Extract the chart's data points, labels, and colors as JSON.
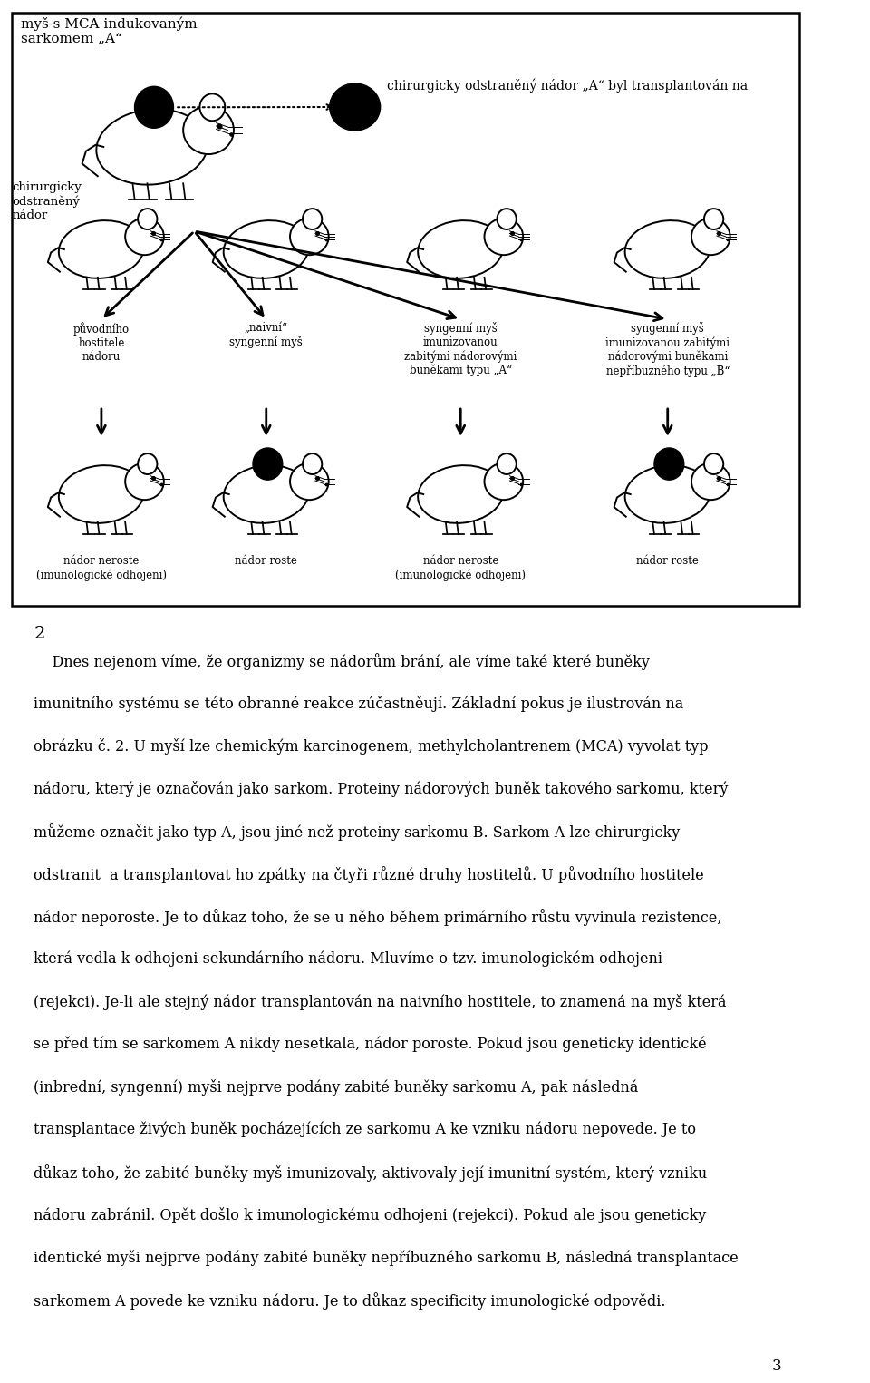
{
  "bg_color": "#ffffff",
  "title_label": "myš s MCA indukovaným\nsarkomem „A“",
  "transplant_label": "chirurgicky odstraněný nádor „A“ byl transplantován na",
  "surgical_label": "chirurgicky\nodstraněný\nnádor",
  "upper_mouse_labels": [
    "původního\nhostitele\nnádoru",
    "„naivní“\nsyngenní myš",
    "syngenní myš\nimunizovanou\nzabitými nádorovými\nbuněkami typu „A“",
    "syngenní myš\nimunizovanou zabitými\nnádorovými buněkami\nnepříbuzného typu „B“"
  ],
  "result_labels": [
    "nádor neroste\n(imunologické odhojeni)",
    "nádor roste",
    "nádor neroste\n(imunologické odhojeni)",
    "nádor roste"
  ],
  "lower_has_tumor": [
    false,
    true,
    false,
    true
  ],
  "lower_tumor_dashed": [
    true,
    false,
    false,
    false
  ],
  "section_num": "2",
  "text_lines": [
    "    Dnes nejenom víme, že organizmy se nádorům brání, ale víme také které buněky",
    "imunitního systému se této obranné reakce zúčastněují. Základní pokus je ilustrován na",
    "obrázku č. 2. U myší lze chemickým karcinogenem, methylcholantrenem (MCA) vyvolat typ",
    "nádoru, který je označován jako sarkom. Proteiny nádorových buněk takového sarkomu, který",
    "můžeme označit jako typ A, jsou jiné než proteiny sarkomu B. Sarkom A lze chirurgicky",
    "odstranit  a transplantovat ho zpátky na čtyři různé druhy hostitelů. U původního hostitele",
    "nádor neporoste. Je to důkaz toho, že se u něho během primárního růstu vyvinula rezistence,",
    "která vedla k odhojeni sekundárního nádoru. Mluvíme o tzv. imunologickém odhojeni",
    "(rejekci). Je-li ale stejný nádor transplantován na naivního hostitele, to znamená na myš která",
    "se před tím se sarkomem A nikdy nesetkala, nádor poroste. Pokud jsou geneticky identické",
    "(inbrední, syngenní) myši nejprve podány zabité buněky sarkomu A, pak následná",
    "transplantace živých buněk pocházejících ze sarkomu A ke vzniku nádoru nepovede. Je to",
    "důkaz toho, že zabité buněky myš imunizovaly, aktivovaly její imunitní systém, který vzniku",
    "nádoru zabránil. Opět došlo k imunologickému odhojeni (rejekci). Pokud ale jsou geneticky",
    "identické myši nejprve podány zabité buněky nepříbuzného sarkomu B, následná transplantace",
    "sarkomem A povede ke vzniku nádoru. Je to důkaz specificity imunologické odpovědi."
  ],
  "page_num": "3",
  "fig_w": 9.6,
  "fig_h": 15.25,
  "dpi": 100
}
